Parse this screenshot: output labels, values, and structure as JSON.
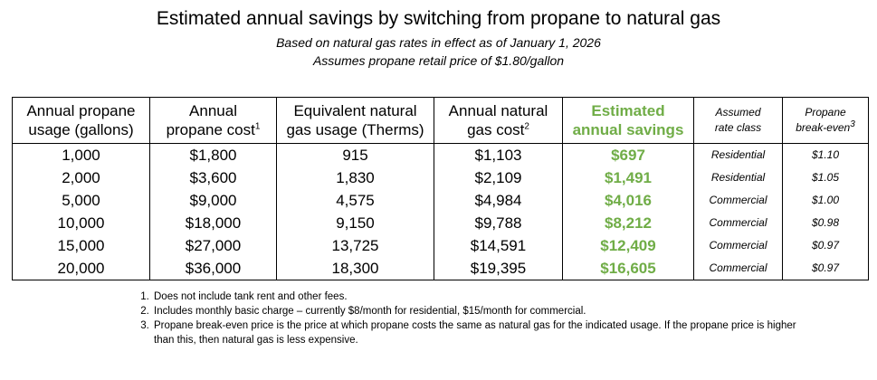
{
  "title": "Estimated annual savings by switching from propane to natural gas",
  "subtitle1": "Based on natural gas rates in effect as of January 1, 2026",
  "subtitle2": "Assumes propane retail price of $1.80/gallon",
  "headers": {
    "usage": [
      "Annual propane",
      "usage (gallons)"
    ],
    "cost": [
      "Annual",
      "propane cost"
    ],
    "cost_sup": "1",
    "therms": [
      "Equivalent natural",
      "gas usage (Therms)"
    ],
    "gas_cost": [
      "Annual natural",
      "gas cost"
    ],
    "gas_cost_sup": "2",
    "savings": [
      "Estimated",
      "annual savings"
    ],
    "rate_class": [
      "Assumed",
      "rate class"
    ],
    "breakeven": [
      "Propane",
      "break-even"
    ],
    "breakeven_sup": "3"
  },
  "rows": [
    {
      "usage": "1,000",
      "cost": "$1,800",
      "therms": "915",
      "gas_cost": "$1,103",
      "savings": "$697",
      "rate_class": "Residential",
      "breakeven": "$1.10"
    },
    {
      "usage": "2,000",
      "cost": "$3,600",
      "therms": "1,830",
      "gas_cost": "$2,109",
      "savings": "$1,491",
      "rate_class": "Residential",
      "breakeven": "$1.05"
    },
    {
      "usage": "5,000",
      "cost": "$9,000",
      "therms": "4,575",
      "gas_cost": "$4,984",
      "savings": "$4,016",
      "rate_class": "Commercial",
      "breakeven": "$1.00"
    },
    {
      "usage": "10,000",
      "cost": "$18,000",
      "therms": "9,150",
      "gas_cost": "$9,788",
      "savings": "$8,212",
      "rate_class": "Commercial",
      "breakeven": "$0.98"
    },
    {
      "usage": "15,000",
      "cost": "$27,000",
      "therms": "13,725",
      "gas_cost": "$14,591",
      "savings": "$12,409",
      "rate_class": "Commercial",
      "breakeven": "$0.97"
    },
    {
      "usage": "20,000",
      "cost": "$36,000",
      "therms": "18,300",
      "gas_cost": "$19,395",
      "savings": "$16,605",
      "rate_class": "Commercial",
      "breakeven": "$0.97"
    }
  ],
  "notes": [
    "Does not include tank rent and other fees.",
    "Includes monthly basic charge – currently $8/month for residential, $15/month for commercial.",
    "Propane break-even price is the price at which propane costs the same as natural gas for the indicated usage. If the propane price is higher than this, then natural gas is less expensive."
  ],
  "colors": {
    "savings_green": "#70ad47"
  }
}
